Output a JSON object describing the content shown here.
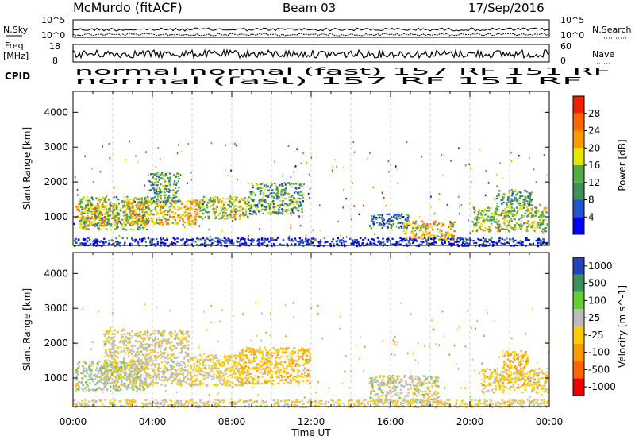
{
  "header": {
    "station": "McMurdo (fitACF)",
    "beam": "Beam 03",
    "date": "17/Sep/2016"
  },
  "noise_panel": {
    "left_label": "N.Sky",
    "right_label": "N.Search",
    "left_ticks": [
      "10^5",
      "10^0"
    ],
    "right_ticks": [
      "10^5",
      "10^0"
    ]
  },
  "freq_panel": {
    "left_label_1": "Freq.",
    "left_label_2": "[MHz]",
    "left_ticks": [
      "18",
      "8"
    ],
    "right_label": "Nave",
    "right_ticks": [
      "60",
      "0"
    ]
  },
  "cpid_panel": {
    "label": "CPID",
    "row1_text": "normal normal (fast) 157 RF 151 RF",
    "row2_text": "normal (fast) 157 RF 151 RF"
  },
  "colors": {
    "power_scale": [
      "#0000ff",
      "#2255cc",
      "#3f8f5a",
      "#55aa44",
      "#e6e600",
      "#ff9900",
      "#ff6600",
      "#ee2200"
    ],
    "velocity_scale": [
      "#2244bb",
      "#3f8f5a",
      "#66cc33",
      "#bbbbbb",
      "#ffcc00",
      "#ff9900",
      "#ff6600",
      "#ee0000"
    ],
    "ground_scatter": "#888888"
  },
  "chart_data": [
    {
      "type": "heatmap",
      "title": "",
      "xlabel": "Time UT",
      "ylabel": "Slant Range [km]",
      "x_ticks": [
        "00:00",
        "04:00",
        "08:00",
        "12:00",
        "16:00",
        "20:00",
        "00:00"
      ],
      "y_ticks": [
        "1000",
        "2000",
        "3000",
        "4000"
      ],
      "xlim": [
        0,
        24
      ],
      "ylim": [
        180,
        4600
      ],
      "colorbar_label": "Power [dB]",
      "colorbar_ticks": [
        "4",
        "8",
        "12",
        "16",
        "20",
        "24",
        "28"
      ],
      "colorbar_range": [
        0,
        32
      ],
      "regions": [
        {
          "t0": 0.1,
          "t1": 2.3,
          "r0": 750,
          "r1": 1350,
          "value": 22
        },
        {
          "t0": 0.3,
          "t1": 3.8,
          "r0": 650,
          "r1": 1600,
          "value": 14
        },
        {
          "t0": 2.5,
          "t1": 6.3,
          "r0": 800,
          "r1": 1500,
          "value": 20
        },
        {
          "t0": 3.8,
          "t1": 5.3,
          "r0": 1400,
          "r1": 2300,
          "value": 12
        },
        {
          "t0": 6.3,
          "t1": 8.8,
          "r0": 950,
          "r1": 1600,
          "value": 17
        },
        {
          "t0": 8.8,
          "t1": 11.6,
          "r0": 1100,
          "r1": 2000,
          "value": 12
        },
        {
          "t0": 14.9,
          "t1": 16.9,
          "r0": 700,
          "r1": 1100,
          "value": 8
        },
        {
          "t0": 16.6,
          "t1": 19.2,
          "r0": 350,
          "r1": 900,
          "value": 20
        },
        {
          "t0": 20.1,
          "t1": 23.9,
          "r0": 600,
          "r1": 1300,
          "value": 16
        },
        {
          "t0": 21.3,
          "t1": 23.1,
          "r0": 1300,
          "r1": 1800,
          "value": 12
        },
        {
          "t0": 0.0,
          "t1": 23.9,
          "r0": 180,
          "r1": 420,
          "value": 3
        }
      ]
    },
    {
      "type": "heatmap",
      "title": "",
      "xlabel": "Time UT",
      "ylabel": "Slant Range [km]",
      "x_ticks": [
        "00:00",
        "04:00",
        "08:00",
        "12:00",
        "16:00",
        "20:00",
        "00:00"
      ],
      "y_ticks": [
        "1000",
        "2000",
        "3000",
        "4000"
      ],
      "xlim": [
        0,
        24
      ],
      "ylim": [
        180,
        4600
      ],
      "colorbar_label": "Velocity [m s^-1]",
      "colorbar_ticks": [
        "1000",
        "500",
        "100",
        "25",
        "-25",
        "-100",
        "-500",
        "-1000"
      ],
      "colorbar_range": [
        -1200,
        1200
      ],
      "regions": [
        {
          "t0": 0.1,
          "t1": 3.8,
          "r0": 650,
          "r1": 1500,
          "value": 200
        },
        {
          "t0": 1.5,
          "t1": 5.8,
          "r0": 800,
          "r1": 2400,
          "value": 60
        },
        {
          "t0": 5.8,
          "t1": 8.6,
          "r0": 800,
          "r1": 1700,
          "value": -40
        },
        {
          "t0": 8.3,
          "t1": 11.9,
          "r0": 850,
          "r1": 1900,
          "value": -200
        },
        {
          "t0": 14.9,
          "t1": 18.4,
          "r0": 300,
          "r1": 1100,
          "value": 120
        },
        {
          "t0": 20.5,
          "t1": 23.9,
          "r0": 600,
          "r1": 1300,
          "value": -150
        },
        {
          "t0": 21.6,
          "t1": 22.9,
          "r0": 1300,
          "r1": 1800,
          "value": -300
        },
        {
          "t0": 0.0,
          "t1": 23.9,
          "r0": 180,
          "r1": 400,
          "value": 10
        }
      ]
    }
  ]
}
